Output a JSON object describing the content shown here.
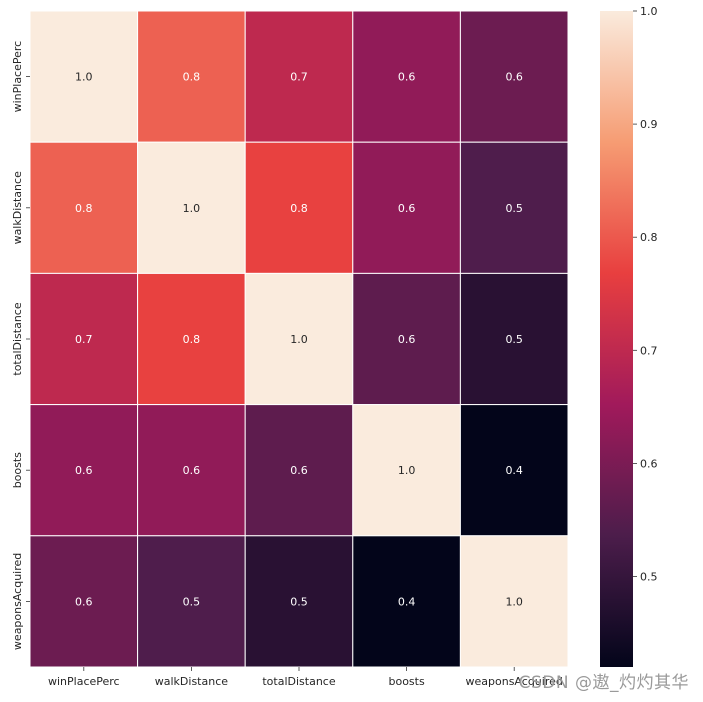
{
  "chart_data": {
    "type": "heatmap",
    "x_labels": [
      "winPlacePerc",
      "walkDistance",
      "totalDistance",
      "boosts",
      "weaponsAcquired"
    ],
    "y_labels": [
      "winPlacePerc",
      "walkDistance",
      "totalDistance",
      "boosts",
      "weaponsAcquired"
    ],
    "values": [
      [
        1.0,
        0.81,
        0.7,
        0.63,
        0.58
      ],
      [
        0.81,
        1.0,
        0.77,
        0.63,
        0.54
      ],
      [
        0.7,
        0.77,
        1.0,
        0.56,
        0.48
      ],
      [
        0.63,
        0.63,
        0.56,
        1.0,
        0.42
      ],
      [
        0.58,
        0.54,
        0.48,
        0.42,
        1.0
      ]
    ],
    "annotations": [
      [
        "1.0",
        "0.8",
        "0.7",
        "0.6",
        "0.6"
      ],
      [
        "0.8",
        "1.0",
        "0.8",
        "0.6",
        "0.5"
      ],
      [
        "0.7",
        "0.8",
        "1.0",
        "0.6",
        "0.5"
      ],
      [
        "0.6",
        "0.6",
        "0.6",
        "1.0",
        "0.4"
      ],
      [
        "0.6",
        "0.5",
        "0.5",
        "0.4",
        "1.0"
      ]
    ],
    "colorbar": {
      "range": [
        0.42,
        1.0
      ],
      "ticks": [
        "1.0",
        "0.9",
        "0.8",
        "0.7",
        "0.6",
        "0.5"
      ],
      "tick_values": [
        1.0,
        0.9,
        0.8,
        0.7,
        0.6,
        0.5
      ]
    },
    "colormap": "rocket",
    "colormap_stops": [
      "#03051a",
      "#4c1d4b",
      "#a11a5b",
      "#e83f3f",
      "#f69c73",
      "#faebdd"
    ],
    "cell_border_color": "#ffffff"
  },
  "watermark": "CSDN @遨_灼灼其华"
}
